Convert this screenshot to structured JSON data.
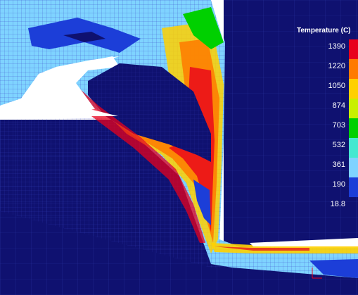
{
  "legend": {
    "title": "Temperature (C)",
    "labels": [
      "1390",
      "1220",
      "1050",
      "874",
      "703",
      "532",
      "361",
      "190",
      "18.8"
    ],
    "colors": [
      "#e8001c",
      "#ff7a00",
      "#ffd000",
      "#c8f000",
      "#00d000",
      "#44e8d0",
      "#7fd3ff",
      "#1c3ed8"
    ]
  },
  "palette": {
    "background_mesh": "#0f1170",
    "cool_region": "#1c3ed8",
    "warm_region": "#7fd3ff",
    "hot_band": "#e8001c",
    "mesh_line": "#6f7dff",
    "empty_space": "#ffffff"
  }
}
